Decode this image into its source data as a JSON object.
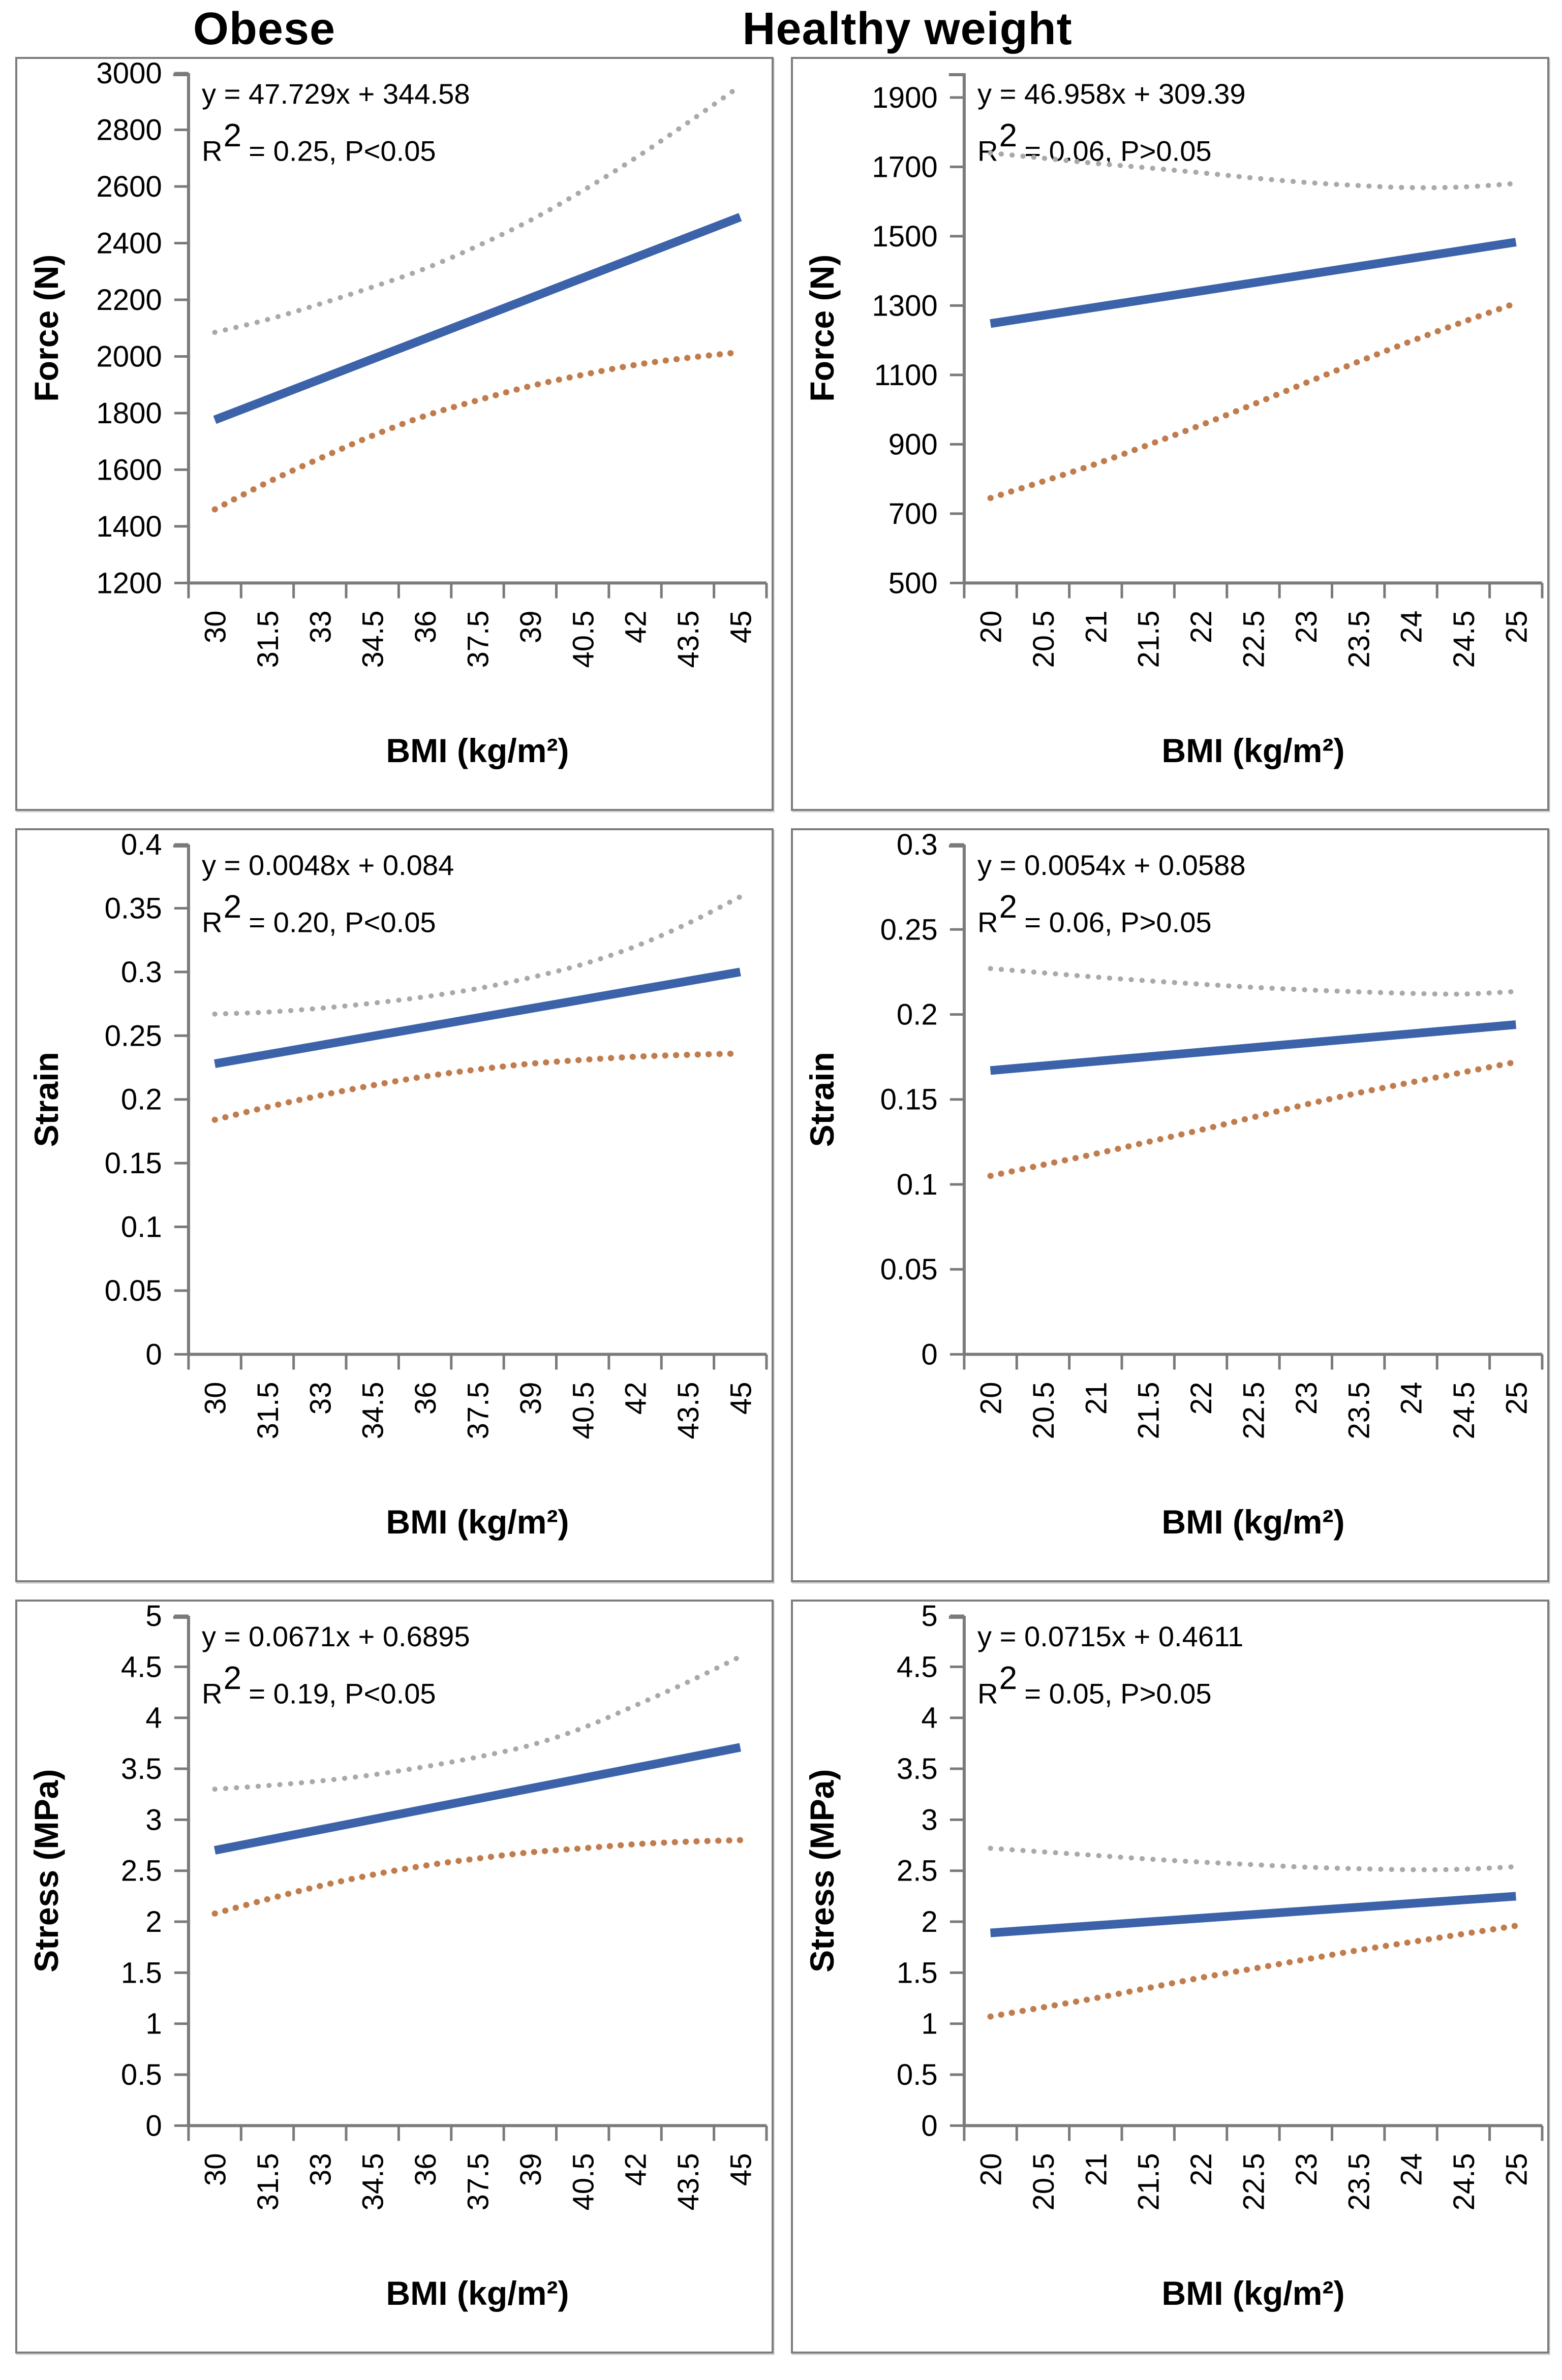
{
  "figure": {
    "column_titles": [
      "Obese",
      "Healthy weight"
    ]
  },
  "colors": {
    "regression_blue": "#3c63a9",
    "upper_band_gray": "#a9a9a9",
    "lower_band_orange": "#c17c4d",
    "axis_gray": "#7a7a7a",
    "panel_border": "#7d7d7d"
  },
  "chart_data": [
    {
      "id": "obese-force",
      "type": "line",
      "group": "Obese",
      "xlabel": "BMI (kg/m²)",
      "ylabel": "Force (N)",
      "equation": "y = 47.729x + 344.58",
      "r2_base": "R",
      "r2_sup": "2",
      "r2_rest": "= 0.25, P<0.05",
      "x_tick_values": [
        30,
        31.5,
        33,
        34.5,
        36,
        37.5,
        39,
        40.5,
        42,
        43.5,
        45
      ],
      "x_tick_labels": [
        "30",
        "31.5",
        "33",
        "34.5",
        "36",
        "37.5",
        "39",
        "40.5",
        "42",
        "43.5",
        "45"
      ],
      "y_tick_values": [
        3000,
        2800,
        2600,
        2400,
        2200,
        2000,
        1800,
        1600,
        1400,
        1200
      ],
      "y_tick_labels": [
        "3000",
        "2800",
        "2600",
        "2400",
        "2200",
        "2000",
        "1800",
        "1600",
        "1400",
        "1200"
      ],
      "ylim": [
        1200,
        3000
      ],
      "series": [
        {
          "name": "gray-dotted-upper-line",
          "style": "dotted",
          "color": "#a9a9a9",
          "points": [
            [
              30,
              2085
            ],
            [
              31.5,
              2130
            ],
            [
              33,
              2185
            ],
            [
              34.5,
              2245
            ],
            [
              36,
              2310
            ],
            [
              37.5,
              2390
            ],
            [
              39,
              2480
            ],
            [
              40.5,
              2585
            ],
            [
              42,
              2700
            ],
            [
              43.5,
              2825
            ],
            [
              45,
              2955
            ]
          ]
        },
        {
          "name": "orange-dotted-lower-line",
          "style": "dotted",
          "color": "#c17c4d",
          "points": [
            [
              30,
              1460
            ],
            [
              31.5,
              1555
            ],
            [
              33,
              1640
            ],
            [
              34.5,
              1720
            ],
            [
              36,
              1790
            ],
            [
              37.5,
              1845
            ],
            [
              39,
              1895
            ],
            [
              40.5,
              1935
            ],
            [
              42,
              1970
            ],
            [
              43.5,
              1995
            ],
            [
              45,
              2015
            ]
          ]
        },
        {
          "name": "blue-solid-regression-line",
          "style": "solid",
          "color": "#3c63a9",
          "points": [
            [
              30,
              1776
            ],
            [
              45,
              2492
            ]
          ]
        }
      ]
    },
    {
      "id": "healthy-force",
      "type": "line",
      "group": "Healthy weight",
      "xlabel": "BMI (kg/m²)",
      "ylabel": "Force (N)",
      "equation": "y = 46.958x + 309.39",
      "r2_base": "R",
      "r2_sup": "2",
      "r2_rest": "= 0.06, P>0.05",
      "x_tick_values": [
        20,
        20.5,
        21,
        21.5,
        22,
        22.5,
        23,
        23.5,
        24,
        24.5,
        25
      ],
      "x_tick_labels": [
        "20",
        "20.5",
        "21",
        "21.5",
        "22",
        "22.5",
        "23",
        "23.5",
        "24",
        "24.5",
        "25"
      ],
      "y_tick_values": [
        1900,
        1700,
        1500,
        1300,
        1100,
        900,
        700,
        500
      ],
      "y_tick_labels": [
        "1900",
        "1700",
        "1500",
        "1300",
        "1100",
        "900",
        "700",
        "500"
      ],
      "ylim": [
        500,
        1970
      ],
      "series": [
        {
          "name": "gray-dotted-upper-line",
          "style": "dotted",
          "color": "#a9a9a9",
          "points": [
            [
              20,
              1740
            ],
            [
              20.5,
              1725
            ],
            [
              21,
              1710
            ],
            [
              21.5,
              1697
            ],
            [
              22,
              1683
            ],
            [
              22.5,
              1668
            ],
            [
              23,
              1655
            ],
            [
              23.5,
              1646
            ],
            [
              24,
              1640
            ],
            [
              24.5,
              1642
            ],
            [
              25,
              1652
            ]
          ]
        },
        {
          "name": "orange-dotted-lower-line",
          "style": "dotted",
          "color": "#c17c4d",
          "points": [
            [
              20,
              745
            ],
            [
              20.5,
              793
            ],
            [
              21,
              843
            ],
            [
              21.5,
              898
            ],
            [
              22,
              955
            ],
            [
              22.5,
              1015
            ],
            [
              23,
              1077
            ],
            [
              23.5,
              1138
            ],
            [
              24,
              1197
            ],
            [
              24.5,
              1253
            ],
            [
              25,
              1307
            ]
          ]
        },
        {
          "name": "blue-solid-regression-line",
          "style": "solid",
          "color": "#3c63a9",
          "points": [
            [
              20,
              1248
            ],
            [
              25,
              1483
            ]
          ]
        }
      ]
    },
    {
      "id": "obese-strain",
      "type": "line",
      "group": "Obese",
      "xlabel": "BMI (kg/m²)",
      "ylabel": "Strain",
      "equation": "y = 0.0048x + 0.084",
      "r2_base": "R",
      "r2_sup": "2",
      "r2_rest": "= 0.20, P<0.05",
      "x_tick_values": [
        30,
        31.5,
        33,
        34.5,
        36,
        37.5,
        39,
        40.5,
        42,
        43.5,
        45
      ],
      "x_tick_labels": [
        "30",
        "31.5",
        "33",
        "34.5",
        "36",
        "37.5",
        "39",
        "40.5",
        "42",
        "43.5",
        "45"
      ],
      "y_tick_values": [
        0.4,
        0.35,
        0.3,
        0.25,
        0.2,
        0.15,
        0.1,
        0.05,
        0
      ],
      "y_tick_labels": [
        "0.4",
        "0.35",
        "0.3",
        "0.25",
        "0.2",
        "0.15",
        "0.1",
        "0.05",
        "0"
      ],
      "ylim": [
        0,
        0.4
      ],
      "series": [
        {
          "name": "gray-dotted-upper-line",
          "style": "dotted",
          "color": "#a9a9a9",
          "points": [
            [
              30,
              0.267
            ],
            [
              31.5,
              0.2685
            ],
            [
              33,
              0.2715
            ],
            [
              34.5,
              0.2755
            ],
            [
              36,
              0.2805
            ],
            [
              37.5,
              0.287
            ],
            [
              39,
              0.2955
            ],
            [
              40.5,
              0.306
            ],
            [
              42,
              0.32
            ],
            [
              43.5,
              0.338
            ],
            [
              45,
              0.359
            ]
          ]
        },
        {
          "name": "orange-dotted-lower-line",
          "style": "dotted",
          "color": "#c17c4d",
          "points": [
            [
              30,
              0.184
            ],
            [
              31.5,
              0.194
            ],
            [
              33,
              0.203
            ],
            [
              34.5,
              0.211
            ],
            [
              36,
              0.218
            ],
            [
              37.5,
              0.2235
            ],
            [
              39,
              0.228
            ],
            [
              40.5,
              0.231
            ],
            [
              42,
              0.2335
            ],
            [
              43.5,
              0.235
            ],
            [
              45,
              0.236
            ]
          ]
        },
        {
          "name": "blue-solid-regression-line",
          "style": "solid",
          "color": "#3c63a9",
          "points": [
            [
              30,
              0.228
            ],
            [
              45,
              0.3
            ]
          ]
        }
      ]
    },
    {
      "id": "healthy-strain",
      "type": "line",
      "group": "Healthy weight",
      "xlabel": "BMI (kg/m²)",
      "ylabel": "Strain",
      "equation": "y = 0.0054x + 0.0588",
      "r2_base": "R",
      "r2_sup": "2",
      "r2_rest": "= 0.06, P>0.05",
      "x_tick_values": [
        20,
        20.5,
        21,
        21.5,
        22,
        22.5,
        23,
        23.5,
        24,
        24.5,
        25
      ],
      "x_tick_labels": [
        "20",
        "20.5",
        "21",
        "21.5",
        "22",
        "22.5",
        "23",
        "23.5",
        "24",
        "24.5",
        "25"
      ],
      "y_tick_values": [
        0.3,
        0.25,
        0.2,
        0.15,
        0.1,
        0.05,
        0
      ],
      "y_tick_labels": [
        "0.3",
        "0.25",
        "0.2",
        "0.15",
        "0.1",
        "0.05",
        "0"
      ],
      "ylim": [
        0,
        0.3
      ],
      "series": [
        {
          "name": "gray-dotted-upper-line",
          "style": "dotted",
          "color": "#a9a9a9",
          "points": [
            [
              20,
              0.227
            ],
            [
              20.5,
              0.2245
            ],
            [
              21,
              0.222
            ],
            [
              21.5,
              0.2198
            ],
            [
              22,
              0.2178
            ],
            [
              22.5,
              0.216
            ],
            [
              23,
              0.2145
            ],
            [
              23.5,
              0.2133
            ],
            [
              24,
              0.2124
            ],
            [
              24.5,
              0.212
            ],
            [
              25,
              0.2135
            ]
          ]
        },
        {
          "name": "orange-dotted-lower-line",
          "style": "dotted",
          "color": "#c17c4d",
          "points": [
            [
              20,
              0.105
            ],
            [
              20.5,
              0.1115
            ],
            [
              21,
              0.118
            ],
            [
              21.5,
              0.125
            ],
            [
              22,
              0.132
            ],
            [
              22.5,
              0.1395
            ],
            [
              23,
              0.147
            ],
            [
              23.5,
              0.1538
            ],
            [
              24,
              0.16
            ],
            [
              24.5,
              0.166
            ],
            [
              25,
              0.172
            ]
          ]
        },
        {
          "name": "blue-solid-regression-line",
          "style": "solid",
          "color": "#3c63a9",
          "points": [
            [
              20,
              0.167
            ],
            [
              25,
              0.194
            ]
          ]
        }
      ]
    },
    {
      "id": "obese-stress",
      "type": "line",
      "group": "Obese",
      "xlabel": "BMI (kg/m²)",
      "ylabel": "Stress (MPa)",
      "equation": "y = 0.0671x + 0.6895",
      "r2_base": "R",
      "r2_sup": "2",
      "r2_rest": "= 0.19, P<0.05",
      "x_tick_values": [
        30,
        31.5,
        33,
        34.5,
        36,
        37.5,
        39,
        40.5,
        42,
        43.5,
        45
      ],
      "x_tick_labels": [
        "30",
        "31.5",
        "33",
        "34.5",
        "36",
        "37.5",
        "39",
        "40.5",
        "42",
        "43.5",
        "45"
      ],
      "y_tick_values": [
        5,
        4.5,
        4,
        3.5,
        3,
        2.5,
        2,
        1.5,
        1,
        0.5,
        0
      ],
      "y_tick_labels": [
        "5",
        "4.5",
        "4",
        "3.5",
        "3",
        "2.5",
        "2",
        "1.5",
        "1",
        "0.5",
        "0"
      ],
      "ylim": [
        0,
        5
      ],
      "series": [
        {
          "name": "gray-dotted-upper-line",
          "style": "dotted",
          "color": "#a9a9a9",
          "points": [
            [
              30,
              3.3
            ],
            [
              31.5,
              3.335
            ],
            [
              33,
              3.38
            ],
            [
              34.5,
              3.44
            ],
            [
              36,
              3.52
            ],
            [
              37.5,
              3.615
            ],
            [
              39,
              3.73
            ],
            [
              40.5,
              3.9
            ],
            [
              42,
              4.12
            ],
            [
              43.5,
              4.35
            ],
            [
              45,
              4.6
            ]
          ]
        },
        {
          "name": "orange-dotted-lower-line",
          "style": "dotted",
          "color": "#c17c4d",
          "points": [
            [
              30,
              2.08
            ],
            [
              31.5,
              2.22
            ],
            [
              33,
              2.35
            ],
            [
              34.5,
              2.46
            ],
            [
              36,
              2.55
            ],
            [
              37.5,
              2.62
            ],
            [
              39,
              2.68
            ],
            [
              40.5,
              2.72
            ],
            [
              42,
              2.76
            ],
            [
              43.5,
              2.785
            ],
            [
              45,
              2.8
            ]
          ]
        },
        {
          "name": "blue-solid-regression-line",
          "style": "solid",
          "color": "#3c63a9",
          "points": [
            [
              30,
              2.7
            ],
            [
              45,
              3.71
            ]
          ]
        }
      ]
    },
    {
      "id": "healthy-stress",
      "type": "line",
      "group": "Healthy weight",
      "xlabel": "BMI (kg/m²)",
      "ylabel": "Stress (MPa)",
      "equation": "y = 0.0715x + 0.4611",
      "r2_base": "R",
      "r2_sup": "2",
      "r2_rest": "= 0.05, P>0.05",
      "x_tick_values": [
        20,
        20.5,
        21,
        21.5,
        22,
        22.5,
        23,
        23.5,
        24,
        24.5,
        25
      ],
      "x_tick_labels": [
        "20",
        "20.5",
        "21",
        "21.5",
        "22",
        "22.5",
        "23",
        "23.5",
        "24",
        "24.5",
        "25"
      ],
      "y_tick_values": [
        5,
        4.5,
        4,
        3.5,
        3,
        2.5,
        2,
        1.5,
        1,
        0.5,
        0
      ],
      "y_tick_labels": [
        "5",
        "4.5",
        "4",
        "3.5",
        "3",
        "2.5",
        "2",
        "1.5",
        "1",
        "0.5",
        "0"
      ],
      "ylim": [
        0,
        5
      ],
      "series": [
        {
          "name": "gray-dotted-upper-line",
          "style": "dotted",
          "color": "#a9a9a9",
          "points": [
            [
              20,
              2.72
            ],
            [
              20.5,
              2.685
            ],
            [
              21,
              2.65
            ],
            [
              21.5,
              2.615
            ],
            [
              22,
              2.585
            ],
            [
              22.5,
              2.56
            ],
            [
              23,
              2.535
            ],
            [
              23.5,
              2.52
            ],
            [
              24,
              2.51
            ],
            [
              24.5,
              2.515
            ],
            [
              25,
              2.54
            ]
          ]
        },
        {
          "name": "orange-dotted-lower-line",
          "style": "dotted",
          "color": "#c17c4d",
          "points": [
            [
              20,
              1.07
            ],
            [
              20.5,
              1.16
            ],
            [
              21,
              1.25
            ],
            [
              21.5,
              1.35
            ],
            [
              22,
              1.45
            ],
            [
              22.5,
              1.54
            ],
            [
              23,
              1.63
            ],
            [
              23.5,
              1.72
            ],
            [
              24,
              1.8
            ],
            [
              24.5,
              1.88
            ],
            [
              25,
              1.96
            ]
          ]
        },
        {
          "name": "blue-solid-regression-line",
          "style": "solid",
          "color": "#3c63a9",
          "points": [
            [
              20,
              1.89
            ],
            [
              25,
              2.25
            ]
          ]
        }
      ]
    }
  ]
}
